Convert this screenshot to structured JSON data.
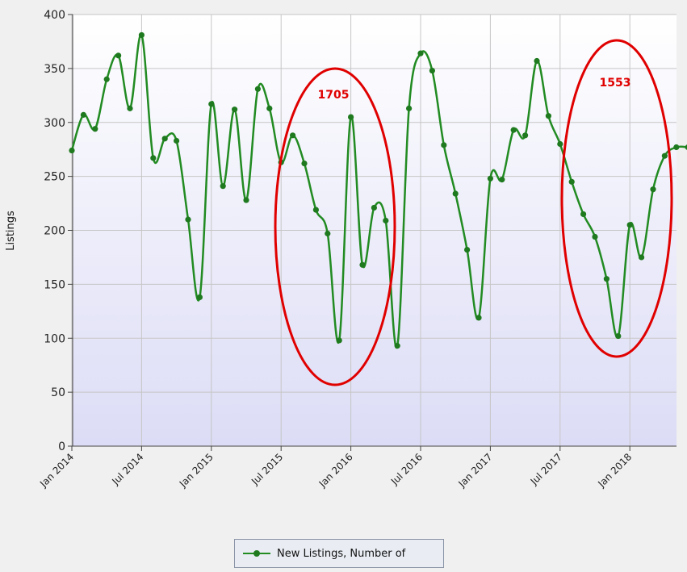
{
  "chart_data": {
    "type": "line",
    "title": "",
    "xlabel": "",
    "ylabel": "Listings",
    "ylim": [
      0,
      400
    ],
    "yticks": [
      0,
      50,
      100,
      150,
      200,
      250,
      300,
      350,
      400
    ],
    "xticks": [
      "Jan 2014",
      "Jul 2014",
      "Jan 2015",
      "Jul 2015",
      "Jan 2016",
      "Jul 2016",
      "Jan 2017",
      "Jul 2017",
      "Jan 2018"
    ],
    "x": [
      "Jan 2014",
      "Feb 2014",
      "Mar 2014",
      "Apr 2014",
      "May 2014",
      "Jun 2014",
      "Jul 2014",
      "Aug 2014",
      "Sep 2014",
      "Oct 2014",
      "Nov 2014",
      "Dec 2014",
      "Jan 2015",
      "Feb 2015",
      "Mar 2015",
      "Apr 2015",
      "May 2015",
      "Jun 2015",
      "Jul 2015",
      "Aug 2015",
      "Sep 2015",
      "Oct 2015",
      "Nov 2015",
      "Dec 2015",
      "Jan 2016",
      "Feb 2016",
      "Mar 2016",
      "Apr 2016",
      "May 2016",
      "Jun 2016",
      "Jul 2016",
      "Aug 2016",
      "Sep 2016",
      "Oct 2016",
      "Nov 2016",
      "Dec 2016",
      "Jan 2017",
      "Feb 2017",
      "Mar 2017",
      "Apr 2017",
      "May 2017",
      "Jun 2017",
      "Jul 2017",
      "Aug 2017",
      "Sep 2017",
      "Oct 2017",
      "Nov 2017",
      "Dec 2017",
      "Jan 2018",
      "Feb 2018",
      "Mar 2018",
      "Apr 2018",
      "May 2018",
      "Jun 2018"
    ],
    "series": [
      {
        "name": "New Listings, Number of",
        "color": "#228b22",
        "values": [
          274,
          307,
          294,
          340,
          362,
          313,
          381,
          267,
          285,
          283,
          210,
          138,
          317,
          241,
          312,
          228,
          331,
          313,
          263,
          288,
          262,
          219,
          197,
          98,
          305,
          168,
          221,
          209,
          93,
          313,
          364,
          348,
          279,
          234,
          182,
          119,
          248,
          247,
          293,
          288,
          357,
          306,
          280,
          245,
          215,
          194,
          155,
          102,
          205,
          175,
          238,
          269,
          277,
          277
        ]
      }
    ],
    "annotations": [
      {
        "text": "1705",
        "color": "#e00000"
      },
      {
        "text": "1553",
        "color": "#e00000"
      }
    ],
    "legend_position": "bottom-center",
    "grid": true
  }
}
